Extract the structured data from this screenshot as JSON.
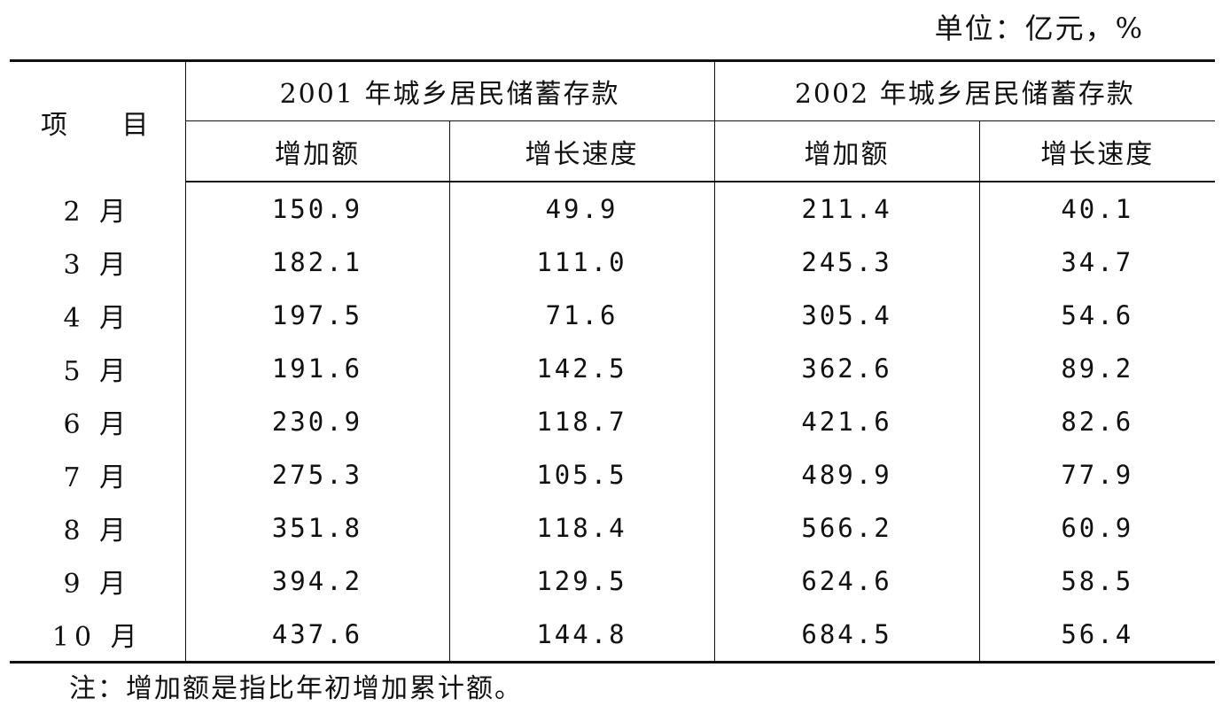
{
  "unit": "单位：亿元，%",
  "table": {
    "row_header": "项 目",
    "groups": [
      {
        "title": "2001 年城乡居民储蓄存款",
        "columns": [
          "增加额",
          "增长速度"
        ]
      },
      {
        "title": "2002 年城乡居民储蓄存款",
        "columns": [
          "增加额",
          "增长速度"
        ]
      }
    ],
    "rows": [
      {
        "month": "2 月",
        "v": [
          "150.9",
          "49.9",
          "211.4",
          "40.1"
        ]
      },
      {
        "month": "3 月",
        "v": [
          "182.1",
          "111.0",
          "245.3",
          "34.7"
        ]
      },
      {
        "month": "4 月",
        "v": [
          "197.5",
          "71.6",
          "305.4",
          "54.6"
        ]
      },
      {
        "month": "5 月",
        "v": [
          "191.6",
          "142.5",
          "362.6",
          "89.2"
        ]
      },
      {
        "month": "6 月",
        "v": [
          "230.9",
          "118.7",
          "421.6",
          "82.6"
        ]
      },
      {
        "month": "7 月",
        "v": [
          "275.3",
          "105.5",
          "489.9",
          "77.9"
        ]
      },
      {
        "month": "8 月",
        "v": [
          "351.8",
          "118.4",
          "566.2",
          "60.9"
        ]
      },
      {
        "month": "9 月",
        "v": [
          "394.2",
          "129.5",
          "624.6",
          "58.5"
        ]
      },
      {
        "month": "10 月",
        "v": [
          "437.6",
          "144.8",
          "684.5",
          "56.4"
        ]
      }
    ]
  },
  "note": "注：增加额是指比年初增加累计额。"
}
